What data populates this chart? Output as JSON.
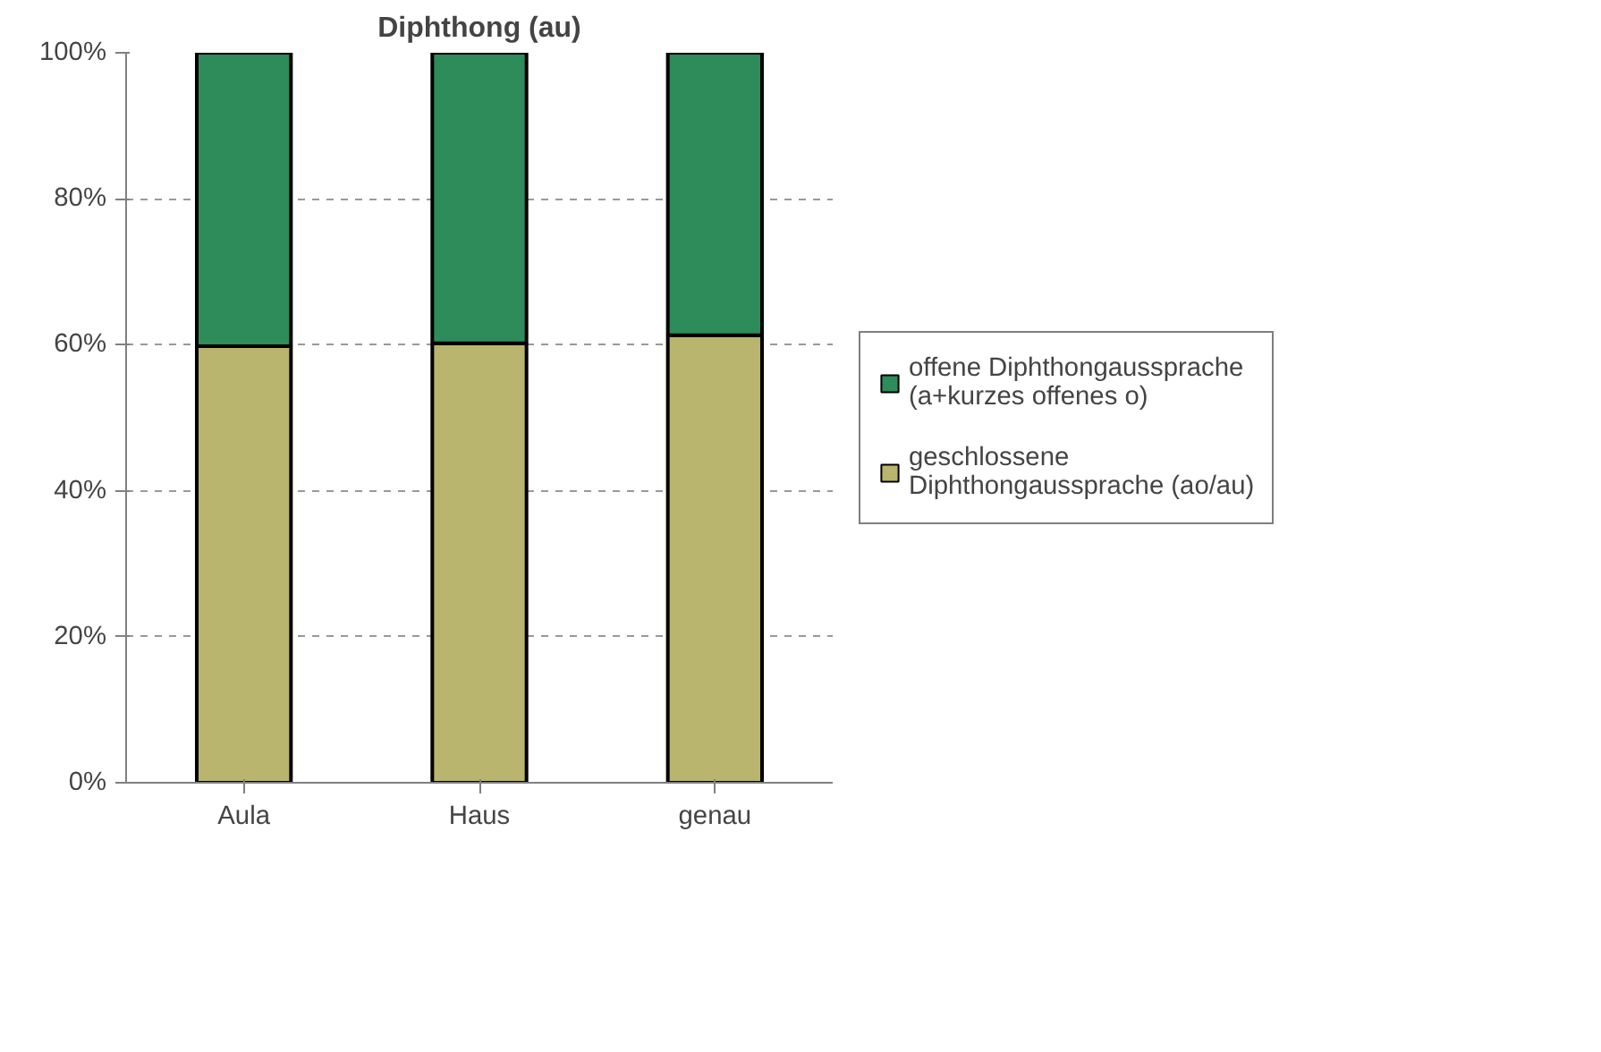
{
  "chart_data": {
    "type": "bar",
    "title": "Diphthong (au)",
    "categories": [
      "Aula",
      "Haus",
      "genau"
    ],
    "stacked": true,
    "series": [
      {
        "name": "geschlossene Diphthongaussprache (ao/au)",
        "color": "#b9b46e",
        "values": [
          59.8,
          60.2,
          61.3
        ]
      },
      {
        "name": "offene Diphthongaussprache (a+kurzes offenes o)",
        "color": "#2e8b5a",
        "values": [
          40.2,
          39.8,
          38.7
        ]
      }
    ],
    "ylim": [
      0,
      100
    ],
    "yticks": [
      {
        "value": 0,
        "label": "0%"
      },
      {
        "value": 20,
        "label": "20%"
      },
      {
        "value": 40,
        "label": "40%"
      },
      {
        "value": 60,
        "label": "60%"
      },
      {
        "value": 80,
        "label": "80%"
      },
      {
        "value": 100,
        "label": "100%"
      }
    ],
    "grid": "y",
    "legend": "right"
  }
}
